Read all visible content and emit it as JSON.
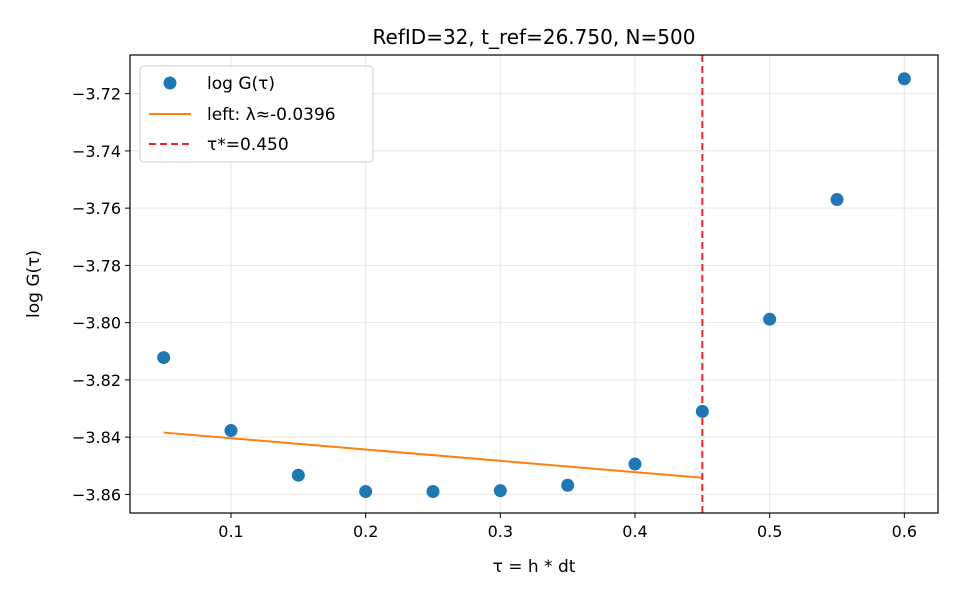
{
  "chart_data": {
    "type": "scatter",
    "title": "RefID=32, t_ref=26.750, N=500",
    "xlabel": "τ = h * dt",
    "ylabel": "log G(τ)",
    "xlim": [
      0.025,
      0.625
    ],
    "ylim": [
      -3.8665,
      -3.7065
    ],
    "xticks": [
      0.1,
      0.2,
      0.3,
      0.4,
      0.5,
      0.6
    ],
    "xtick_labels": [
      "0.1",
      "0.2",
      "0.3",
      "0.4",
      "0.5",
      "0.6"
    ],
    "yticks": [
      -3.86,
      -3.84,
      -3.82,
      -3.8,
      -3.78,
      -3.76,
      -3.74,
      -3.72
    ],
    "ytick_labels": [
      "−3.86",
      "−3.84",
      "−3.82",
      "−3.80",
      "−3.78",
      "−3.76",
      "−3.74",
      "−3.72"
    ],
    "grid": true,
    "legend_position": "top-left",
    "series": [
      {
        "name": "log G(τ)",
        "kind": "points",
        "color": "#1f77b4",
        "x": [
          0.05,
          0.1,
          0.15,
          0.2,
          0.25,
          0.3,
          0.35,
          0.4,
          0.45,
          0.5,
          0.55,
          0.6
        ],
        "y": [
          -3.8122,
          -3.8377,
          -3.8533,
          -3.859,
          -3.859,
          -3.8587,
          -3.8568,
          -3.8494,
          -3.831,
          -3.7988,
          -3.757,
          -3.7148
        ]
      },
      {
        "name": "left: λ≈-0.0396",
        "kind": "line",
        "color": "#ff7f0e",
        "x": [
          0.05,
          0.45
        ],
        "y": [
          -3.8384,
          -3.8542
        ]
      },
      {
        "name": "τ*=0.450",
        "kind": "vline",
        "color": "#e8282a",
        "x": 0.45
      }
    ]
  }
}
